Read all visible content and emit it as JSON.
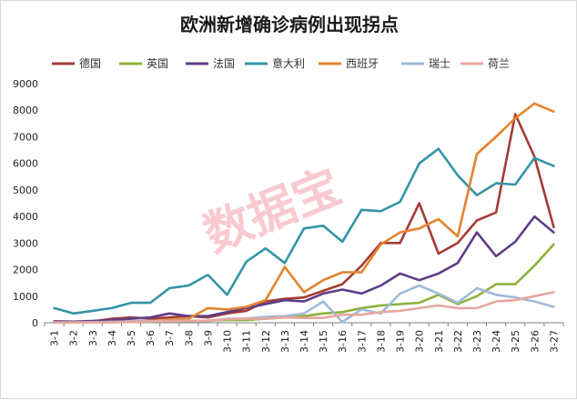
{
  "chart_data": {
    "type": "line",
    "title": "欧洲新增确诊病例出现拐点",
    "watermark": "数据宝",
    "ylim": [
      0,
      9000
    ],
    "yticks": [
      0,
      1000,
      2000,
      3000,
      4000,
      5000,
      6000,
      7000,
      8000,
      9000
    ],
    "categories": [
      "3-1",
      "3-2",
      "3-3",
      "3-4",
      "3-5",
      "3-6",
      "3-7",
      "3-8",
      "3-9",
      "3-10",
      "3-11",
      "3-12",
      "3-13",
      "3-14",
      "3-15",
      "3-16",
      "3-17",
      "3-18",
      "3-19",
      "3-20",
      "3-21",
      "3-22",
      "3-23",
      "3-24",
      "3-25",
      "3-26",
      "3-27"
    ],
    "series": [
      {
        "name": "德国",
        "color": "#a53c35",
        "values": [
          50,
          40,
          50,
          150,
          200,
          150,
          200,
          250,
          200,
          350,
          450,
          800,
          900,
          950,
          1200,
          1450,
          2150,
          3000,
          3000,
          4500,
          2600,
          3000,
          3850,
          4150,
          7850,
          6250,
          3600
        ]
      },
      {
        "name": "英国",
        "color": "#8db13a",
        "values": [
          10,
          10,
          10,
          20,
          30,
          40,
          50,
          60,
          80,
          100,
          100,
          150,
          200,
          250,
          350,
          400,
          550,
          650,
          700,
          750,
          1050,
          700,
          1000,
          1450,
          1450,
          2150,
          2950
        ]
      },
      {
        "name": "法国",
        "color": "#5f3d86",
        "values": [
          50,
          40,
          70,
          100,
          150,
          200,
          350,
          250,
          250,
          400,
          550,
          700,
          850,
          800,
          1100,
          1250,
          1100,
          1400,
          1850,
          1600,
          1850,
          2250,
          3400,
          2500,
          3050,
          4000,
          3400
        ]
      },
      {
        "name": "意大利",
        "color": "#3494a6",
        "values": [
          550,
          350,
          450,
          550,
          750,
          750,
          1300,
          1400,
          1800,
          1050,
          2300,
          2800,
          2250,
          3550,
          3650,
          3050,
          4250,
          4200,
          4550,
          6000,
          6550,
          5550,
          4800,
          5250,
          5200,
          6200,
          5900
        ]
      },
      {
        "name": "西班牙",
        "color": "#e4832e",
        "values": [
          10,
          10,
          20,
          30,
          50,
          60,
          100,
          150,
          550,
          500,
          600,
          850,
          2100,
          1150,
          1600,
          1900,
          1900,
          2950,
          3400,
          3550,
          3900,
          3250,
          6350,
          7000,
          7700,
          8250,
          7950
        ]
      },
      {
        "name": "瑞士",
        "color": "#a0bad8",
        "values": [
          10,
          10,
          20,
          30,
          50,
          60,
          70,
          80,
          60,
          150,
          160,
          220,
          250,
          350,
          800,
          30,
          500,
          350,
          1100,
          1400,
          1100,
          750,
          1300,
          1050,
          950,
          800,
          600
        ]
      },
      {
        "name": "荷兰",
        "color": "#e8a7a0",
        "values": [
          5,
          5,
          10,
          15,
          30,
          50,
          60,
          70,
          80,
          130,
          150,
          150,
          200,
          180,
          180,
          300,
          300,
          400,
          450,
          550,
          650,
          550,
          550,
          800,
          850,
          1000,
          1150
        ]
      }
    ]
  }
}
